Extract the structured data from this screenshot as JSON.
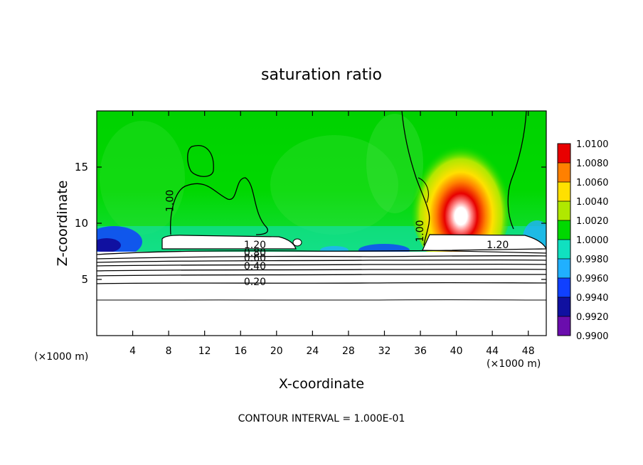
{
  "chart_data": {
    "type": "heatmap",
    "title": "saturation ratio",
    "xlabel": "X-coordinate",
    "ylabel": "Z-coordinate",
    "x_unit": "(×1000 m)",
    "x_unit_right": "(×1000 m)",
    "footer": "CONTOUR INTERVAL = 1.000E-01",
    "xlim": [
      0,
      50
    ],
    "ylim": [
      0,
      20
    ],
    "x_ticks": [
      4,
      8,
      12,
      16,
      20,
      24,
      28,
      32,
      36,
      40,
      44,
      48
    ],
    "y_ticks": [
      5,
      10,
      15
    ],
    "colorbar": {
      "levels": [
        0.99,
        0.992,
        0.994,
        0.996,
        0.998,
        1.0,
        1.002,
        1.004,
        1.006,
        1.008,
        1.01
      ],
      "labels": [
        "0.9900",
        "0.9920",
        "0.9940",
        "0.9960",
        "0.9980",
        "1.0000",
        "1.0020",
        "1.0040",
        "1.0060",
        "1.0080",
        "1.0100"
      ],
      "colors": [
        "#6a0dad",
        "#1010a0",
        "#1040ff",
        "#20b0ff",
        "#10e0c0",
        "#00d800",
        "#b0e800",
        "#ffe000",
        "#ff8000",
        "#e80000",
        "#ff9090"
      ]
    },
    "contour_labels": [
      {
        "text": "1.00",
        "x": 8.5,
        "y": 12.0,
        "rotate": -90
      },
      {
        "text": "1.00",
        "x": 36.3,
        "y": 9.3,
        "rotate": -90
      },
      {
        "text": "1.20",
        "x": 17.6,
        "y": 7.8
      },
      {
        "text": "0.80",
        "x": 17.6,
        "y": 7.1
      },
      {
        "text": "0.60",
        "x": 17.6,
        "y": 6.6
      },
      {
        "text": "0.40",
        "x": 17.6,
        "y": 5.9
      },
      {
        "text": "0.20",
        "x": 17.6,
        "y": 4.5
      },
      {
        "text": "1.20",
        "x": 44.6,
        "y": 7.8
      }
    ]
  }
}
